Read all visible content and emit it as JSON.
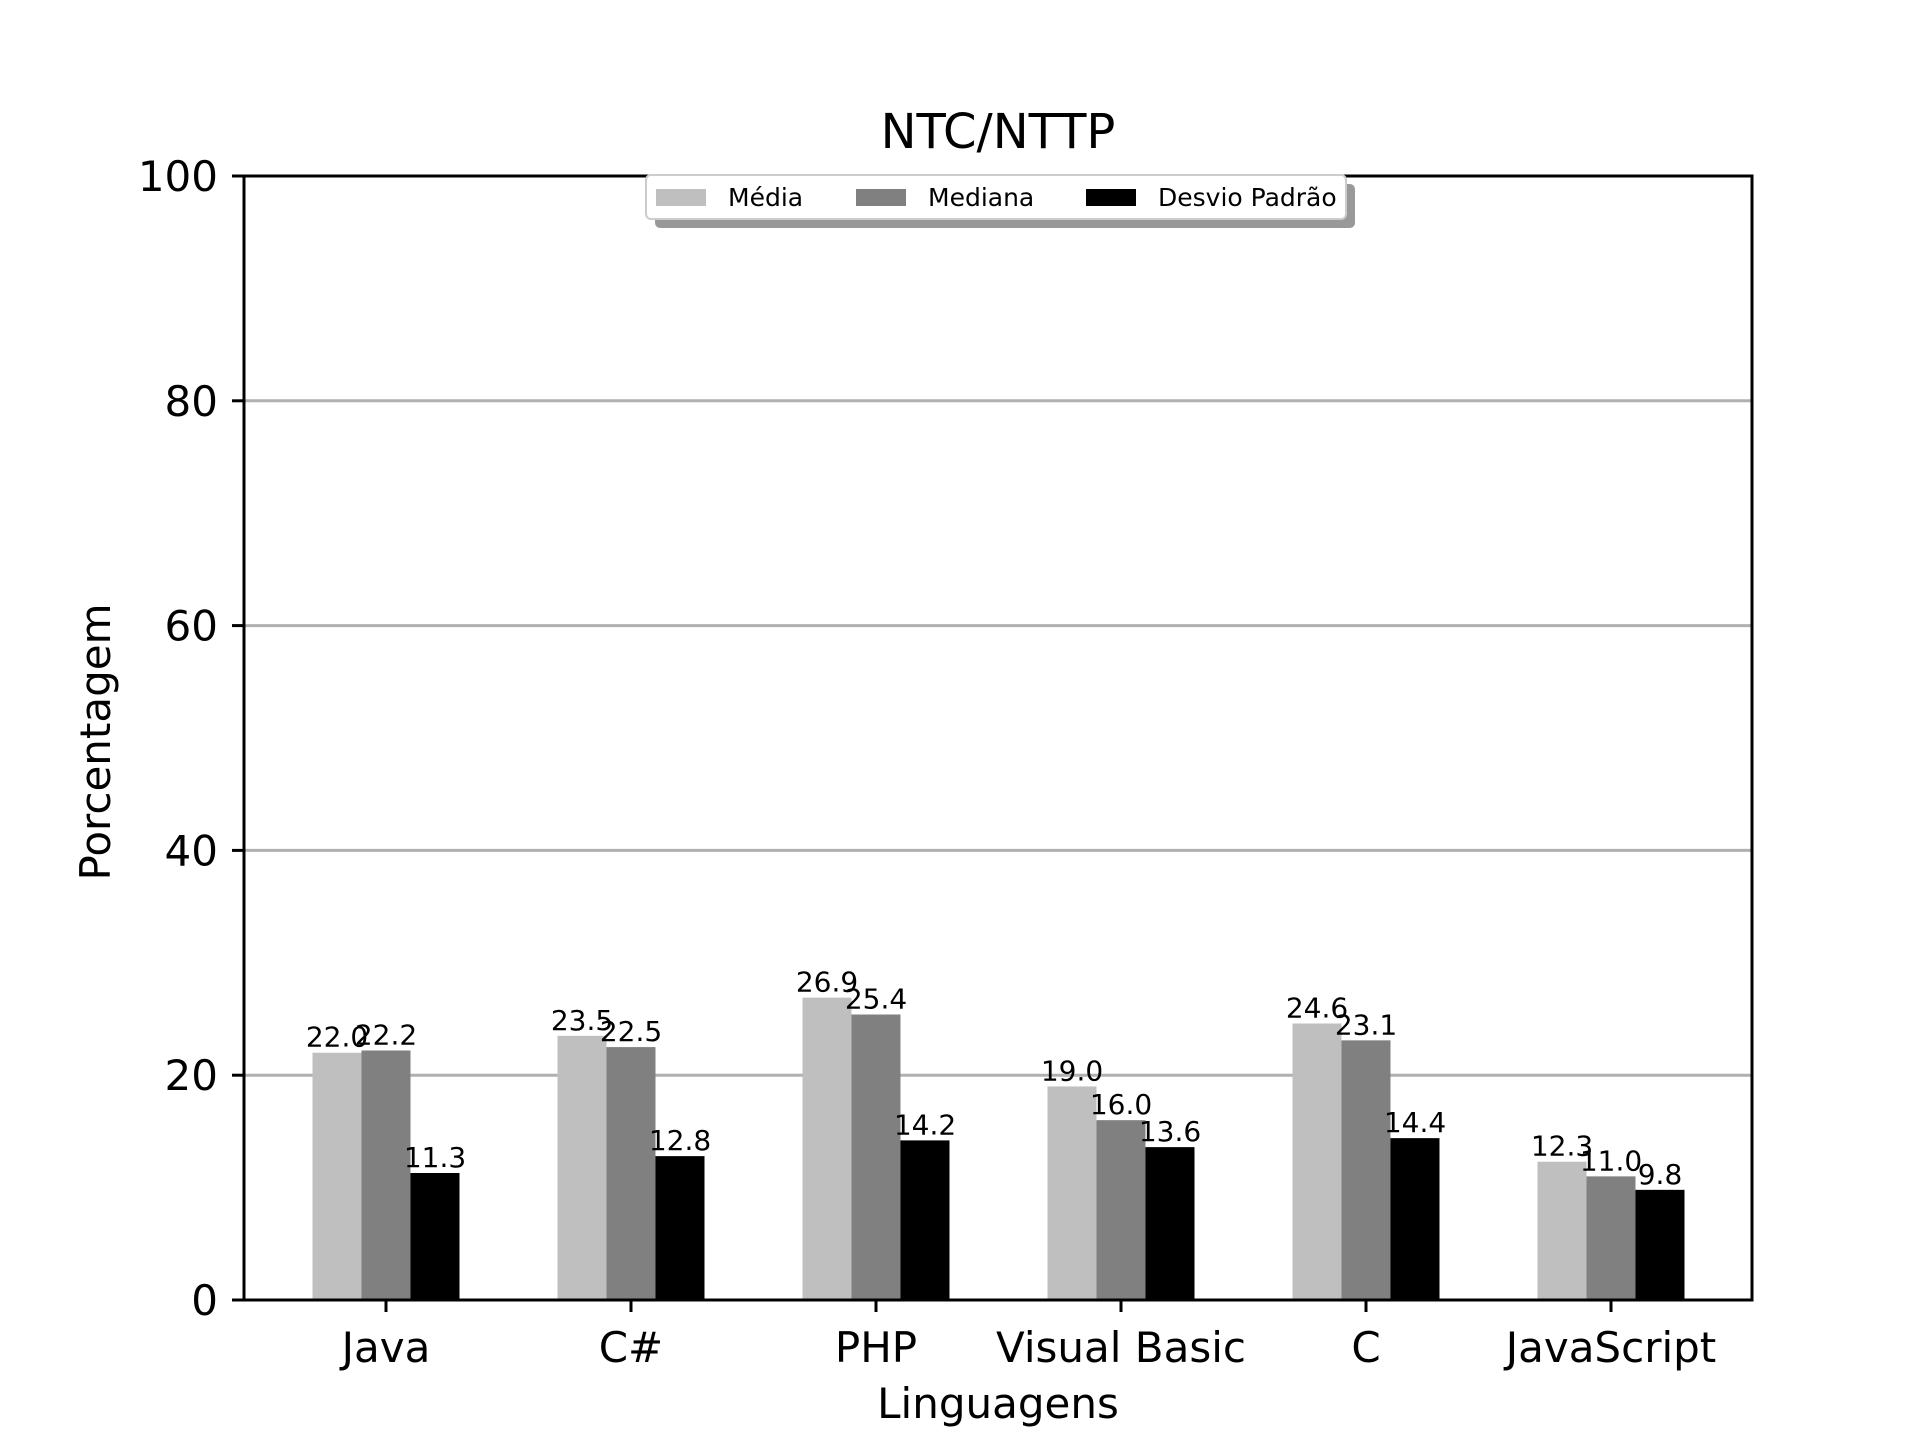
{
  "chart_data": {
    "type": "bar",
    "title": "NTC/NTTP",
    "xlabel": "Linguagens",
    "ylabel": "Porcentagem",
    "ylim": [
      0,
      100
    ],
    "yticks": [
      0,
      20,
      40,
      60,
      80,
      100
    ],
    "grid": "horizontal",
    "legend_position": "top-center",
    "categories": [
      "Java",
      "C#",
      "PHP",
      "Visual Basic",
      "C",
      "JavaScript"
    ],
    "series": [
      {
        "name": "Média",
        "color": "#bfbfbf",
        "values": [
          22.0,
          23.5,
          26.9,
          19.0,
          24.6,
          12.3
        ]
      },
      {
        "name": "Mediana",
        "color": "#808080",
        "values": [
          22.2,
          22.5,
          25.4,
          16.0,
          23.1,
          11.0
        ]
      },
      {
        "name": "Desvio Padrão",
        "color": "#000000",
        "values": [
          11.3,
          12.8,
          14.2,
          13.6,
          14.4,
          9.8
        ]
      }
    ]
  }
}
